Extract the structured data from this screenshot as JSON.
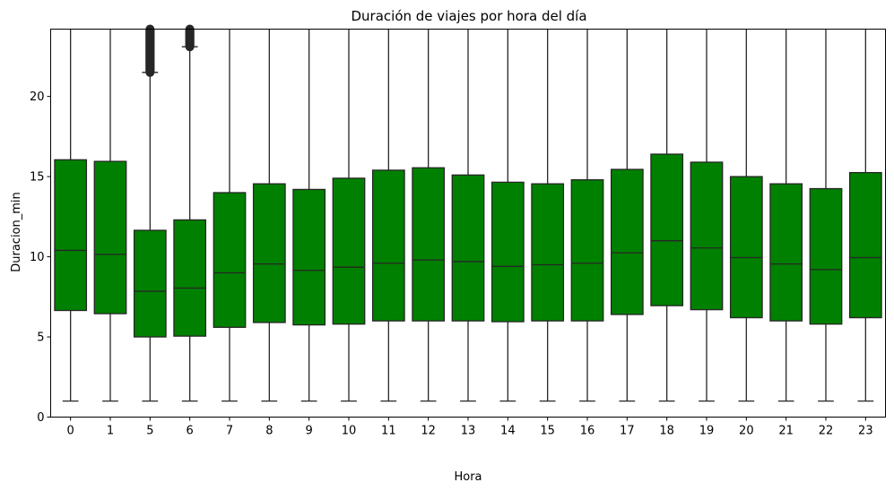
{
  "chart_data": {
    "type": "box",
    "title": "Duración de viajes por hora del día",
    "xlabel": "Hora",
    "ylabel": "Duracion_min",
    "categories": [
      "0",
      "1",
      "5",
      "6",
      "7",
      "8",
      "9",
      "10",
      "11",
      "12",
      "13",
      "14",
      "15",
      "16",
      "17",
      "18",
      "19",
      "20",
      "21",
      "22",
      "23"
    ],
    "ylim": [
      0,
      24.2
    ],
    "yticks": [
      0,
      5,
      10,
      15,
      20
    ],
    "box_color": "#008000",
    "edge_color": "#262626",
    "boxes": [
      {
        "q1": 6.65,
        "median": 10.4,
        "q3": 16.05,
        "whislo": 1.0,
        "whishi": 24.2
      },
      {
        "q1": 6.45,
        "median": 10.15,
        "q3": 15.95,
        "whislo": 1.0,
        "whishi": 24.2
      },
      {
        "q1": 5.0,
        "median": 7.85,
        "q3": 11.65,
        "whislo": 1.0,
        "whishi": 21.5,
        "fliers_from": 21.5
      },
      {
        "q1": 5.05,
        "median": 8.05,
        "q3": 12.3,
        "whislo": 1.0,
        "whishi": 23.1,
        "fliers_from": 23.1
      },
      {
        "q1": 5.6,
        "median": 9.0,
        "q3": 14.0,
        "whislo": 1.0,
        "whishi": 24.2
      },
      {
        "q1": 5.9,
        "median": 9.55,
        "q3": 14.55,
        "whislo": 1.0,
        "whishi": 24.2
      },
      {
        "q1": 5.75,
        "median": 9.15,
        "q3": 14.2,
        "whislo": 1.0,
        "whishi": 24.2
      },
      {
        "q1": 5.8,
        "median": 9.35,
        "q3": 14.9,
        "whislo": 1.0,
        "whishi": 24.2
      },
      {
        "q1": 6.0,
        "median": 9.6,
        "q3": 15.4,
        "whislo": 1.0,
        "whishi": 24.2
      },
      {
        "q1": 6.0,
        "median": 9.8,
        "q3": 15.55,
        "whislo": 1.0,
        "whishi": 24.2
      },
      {
        "q1": 6.0,
        "median": 9.7,
        "q3": 15.1,
        "whislo": 1.0,
        "whishi": 24.2
      },
      {
        "q1": 5.95,
        "median": 9.4,
        "q3": 14.65,
        "whislo": 1.0,
        "whishi": 24.2
      },
      {
        "q1": 6.0,
        "median": 9.5,
        "q3": 14.55,
        "whislo": 1.0,
        "whishi": 24.2
      },
      {
        "q1": 6.0,
        "median": 9.6,
        "q3": 14.8,
        "whislo": 1.0,
        "whishi": 24.2
      },
      {
        "q1": 6.4,
        "median": 10.25,
        "q3": 15.45,
        "whislo": 1.0,
        "whishi": 24.2
      },
      {
        "q1": 6.95,
        "median": 11.0,
        "q3": 16.4,
        "whislo": 1.0,
        "whishi": 24.2
      },
      {
        "q1": 6.7,
        "median": 10.55,
        "q3": 15.9,
        "whislo": 1.0,
        "whishi": 24.2
      },
      {
        "q1": 6.2,
        "median": 9.95,
        "q3": 15.0,
        "whislo": 1.0,
        "whishi": 24.2
      },
      {
        "q1": 6.0,
        "median": 9.55,
        "q3": 14.55,
        "whislo": 1.0,
        "whishi": 24.2
      },
      {
        "q1": 5.8,
        "median": 9.2,
        "q3": 14.25,
        "whislo": 1.0,
        "whishi": 24.2
      },
      {
        "q1": 6.2,
        "median": 9.95,
        "q3": 15.25,
        "whislo": 1.0,
        "whishi": 24.2
      }
    ]
  }
}
